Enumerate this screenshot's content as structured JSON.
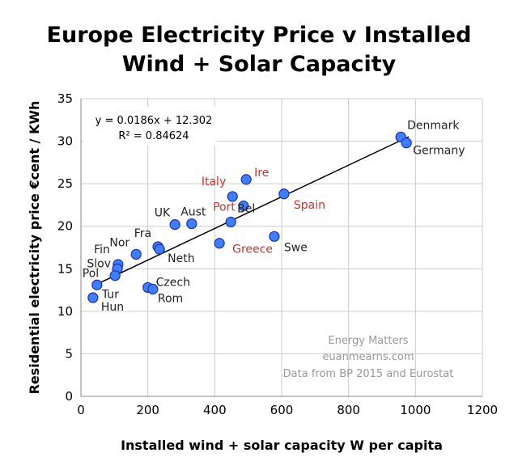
{
  "chart_data": {
    "type": "scatter",
    "title_lines": [
      "Europe Electricity Price v Installed",
      "Wind + Solar Capacity"
    ],
    "xlabel": "Installed wind + solar capacity W per capita",
    "ylabel": "Residential electricity price €cent / KWh",
    "xlim": [
      0,
      1200
    ],
    "ylim": [
      0,
      35
    ],
    "xticks": [
      0,
      200,
      400,
      600,
      800,
      1000,
      1200
    ],
    "yticks": [
      0,
      5,
      10,
      15,
      20,
      25,
      30,
      35
    ],
    "grid": true,
    "marker_color": "#3f7fff",
    "highlight_label_color": "#d0312d",
    "points": [
      {
        "label": "Denmark",
        "x": 956,
        "y": 30.5,
        "highlight": false
      },
      {
        "label": "Germany",
        "x": 973,
        "y": 29.8,
        "highlight": false
      },
      {
        "label": "Spain",
        "x": 607,
        "y": 23.8,
        "highlight": true
      },
      {
        "label": "Ire",
        "x": 494,
        "y": 25.5,
        "highlight": true
      },
      {
        "label": "Italy",
        "x": 453,
        "y": 23.5,
        "highlight": true
      },
      {
        "label": "Port",
        "x": 486,
        "y": 22.4,
        "highlight": true
      },
      {
        "label": "Bel",
        "x": 448,
        "y": 20.5,
        "highlight": false
      },
      {
        "label": "Greece",
        "x": 414,
        "y": 18.0,
        "highlight": true
      },
      {
        "label": "Swe",
        "x": 578,
        "y": 18.8,
        "highlight": false
      },
      {
        "label": "Aust",
        "x": 331,
        "y": 20.3,
        "highlight": false
      },
      {
        "label": "UK",
        "x": 281,
        "y": 20.2,
        "highlight": false
      },
      {
        "label": "Fra",
        "x": 230,
        "y": 17.6,
        "highlight": false
      },
      {
        "label": "Neth",
        "x": 235,
        "y": 17.3,
        "highlight": false
      },
      {
        "label": "Nor",
        "x": 165,
        "y": 16.7,
        "highlight": false
      },
      {
        "label": "Fin",
        "x": 111,
        "y": 15.5,
        "highlight": false
      },
      {
        "label": "Slov",
        "x": 109,
        "y": 15.0,
        "highlight": false
      },
      {
        "label": "Pol",
        "x": 102,
        "y": 14.2,
        "highlight": false
      },
      {
        "label": "Tur",
        "x": 48,
        "y": 13.1,
        "highlight": false
      },
      {
        "label": "Hun",
        "x": 36,
        "y": 11.6,
        "highlight": false
      },
      {
        "label": "Czech",
        "x": 200,
        "y": 12.8,
        "highlight": false
      },
      {
        "label": "Rom",
        "x": 215,
        "y": 12.6,
        "highlight": false
      }
    ],
    "trendline": {
      "slope": 0.0186,
      "intercept": 12.302,
      "x_range": [
        48,
        980
      ]
    },
    "equation_text": "y = 0.0186x + 12.302",
    "r2_text": "R² = 0.84624",
    "annotations": [
      "Energy Matters",
      "euanmearns.com",
      "Data from BP 2015 and Eurostat"
    ]
  }
}
